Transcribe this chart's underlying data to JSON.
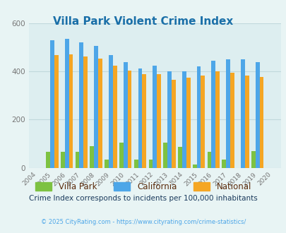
{
  "title": "Villa Park Violent Crime Index",
  "years": [
    2004,
    2005,
    2006,
    2007,
    2008,
    2009,
    2010,
    2011,
    2012,
    2013,
    2014,
    2015,
    2016,
    2017,
    2018,
    2019,
    2020
  ],
  "villa_park": [
    0,
    65,
    65,
    65,
    90,
    33,
    105,
    33,
    33,
    105,
    88,
    14,
    65,
    33,
    0,
    70,
    0
  ],
  "california": [
    0,
    530,
    535,
    522,
    505,
    468,
    438,
    412,
    425,
    400,
    400,
    422,
    445,
    450,
    450,
    440,
    0
  ],
  "national": [
    0,
    468,
    472,
    462,
    452,
    425,
    403,
    388,
    390,
    366,
    374,
    382,
    400,
    396,
    382,
    378,
    0
  ],
  "villa_park_color": "#7dc242",
  "california_color": "#4da6e8",
  "national_color": "#f5a623",
  "bg_color": "#e8f4f4",
  "plot_bg_color": "#ddeef0",
  "title_color": "#1a6fa8",
  "legend_text_color": "#5a2a0a",
  "subtitle": "Crime Index corresponds to incidents per 100,000 inhabitants",
  "subtitle_color": "#1a3a5c",
  "footer": "© 2025 CityRating.com - https://www.cityrating.com/crime-statistics/",
  "footer_color": "#4da6e8",
  "ylim": [
    0,
    600
  ],
  "yticks": [
    0,
    200,
    400,
    600
  ],
  "bar_width": 0.28,
  "legend_labels": [
    "Villa Park",
    "California",
    "National"
  ]
}
